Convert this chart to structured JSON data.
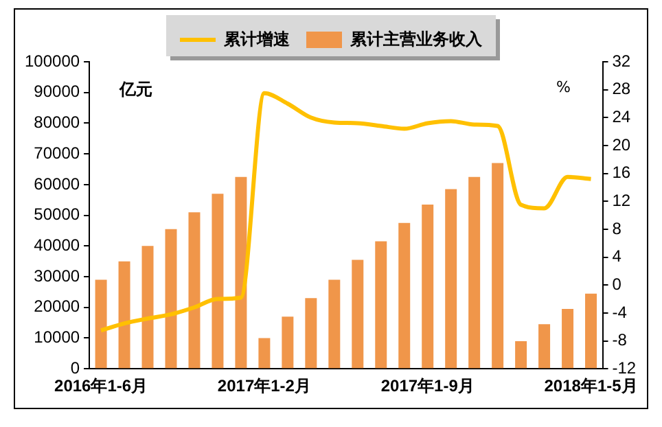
{
  "chart_data": {
    "type": "bar",
    "ylabel": "亿元",
    "y2label": "%",
    "legend": "top",
    "grid": false,
    "categories": [
      "2016年1-6月",
      null,
      null,
      null,
      null,
      null,
      null,
      "2017年1-2月",
      null,
      null,
      null,
      null,
      null,
      null,
      "2017年1-9月",
      null,
      null,
      null,
      null,
      null,
      null,
      "2018年1-5月"
    ],
    "ylim": [
      0,
      100000
    ],
    "yticks": [
      0,
      10000,
      20000,
      30000,
      40000,
      50000,
      60000,
      70000,
      80000,
      90000,
      100000
    ],
    "y2lim": [
      -12,
      32
    ],
    "y2ticks": [
      -12,
      -8,
      -4,
      0,
      4,
      8,
      12,
      16,
      20,
      24,
      28,
      32
    ],
    "series": [
      {
        "name": "累计主营业务收入",
        "color": "#f0964a",
        "values": [
          29000,
          35000,
          40000,
          45500,
          51000,
          57000,
          62500,
          10000,
          17000,
          23000,
          29000,
          35500,
          41500,
          47500,
          53500,
          58500,
          62500,
          67000,
          9000,
          14500,
          19500,
          24500
        ]
      },
      {
        "name": "累计增速",
        "type": "line",
        "axis": "y2",
        "color": "#ffc000",
        "marker": "none",
        "values": [
          -6.5,
          -5.5,
          -4.8,
          -4.2,
          -3.2,
          -2,
          -1.8,
          27.5,
          26,
          24,
          23.3,
          23.2,
          22.8,
          22.4,
          23.2,
          23.5,
          23,
          22.8,
          11.5,
          11,
          15.5,
          15.2
        ]
      }
    ]
  }
}
